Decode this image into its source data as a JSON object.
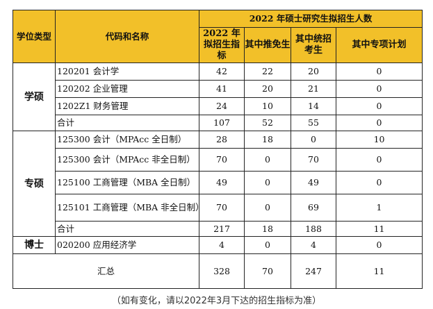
{
  "table": {
    "header": {
      "degree_type": "学位类型",
      "code_name": "代码和名称",
      "group": "2022 年硕士研究生拟招生人数",
      "col_plan": "2022 年拟招生指标",
      "col_exempt": "其中推免生",
      "col_exam": "其中统招考生",
      "col_special": "其中专项计划"
    },
    "sections": [
      {
        "type": "学硕",
        "rows": [
          {
            "name": "120201 会计学",
            "plan": "42",
            "exempt": "22",
            "exam": "20",
            "special": "0"
          },
          {
            "name": "120202 企业管理",
            "plan": "41",
            "exempt": "20",
            "exam": "21",
            "special": "0"
          },
          {
            "name": "1202Z1 财务管理",
            "plan": "24",
            "exempt": "10",
            "exam": "14",
            "special": "0"
          },
          {
            "name": "合计",
            "plan": "107",
            "exempt": "52",
            "exam": "55",
            "special": "0"
          }
        ]
      },
      {
        "type": "专硕",
        "rows": [
          {
            "name": "125300 会计（MPAcc 全日制）",
            "plan": "28",
            "exempt": "18",
            "exam": "0",
            "special": "10"
          },
          {
            "name": "125300 会计（MPAcc 非全日制）",
            "plan": "70",
            "exempt": "0",
            "exam": "70",
            "special": "0"
          },
          {
            "name": "125100 工商管理（MBA 全日制）",
            "plan": "49",
            "exempt": "0",
            "exam": "49",
            "special": "0"
          },
          {
            "name": "125101 工商管理（MBA 非全日制）",
            "plan": "70",
            "exempt": "0",
            "exam": "69",
            "special": "1"
          },
          {
            "name": "合计",
            "plan": "217",
            "exempt": "18",
            "exam": "188",
            "special": "11"
          }
        ]
      },
      {
        "type": "博士",
        "rows": [
          {
            "name": "020200 应用经济学",
            "plan": "4",
            "exempt": "0",
            "exam": "4",
            "special": "0"
          }
        ]
      }
    ],
    "total": {
      "label": "汇总",
      "plan": "328",
      "exempt": "70",
      "exam": "247",
      "special": "11"
    }
  },
  "footnote": "（如有变化，请以2022年3月下达的招生指标为准）"
}
